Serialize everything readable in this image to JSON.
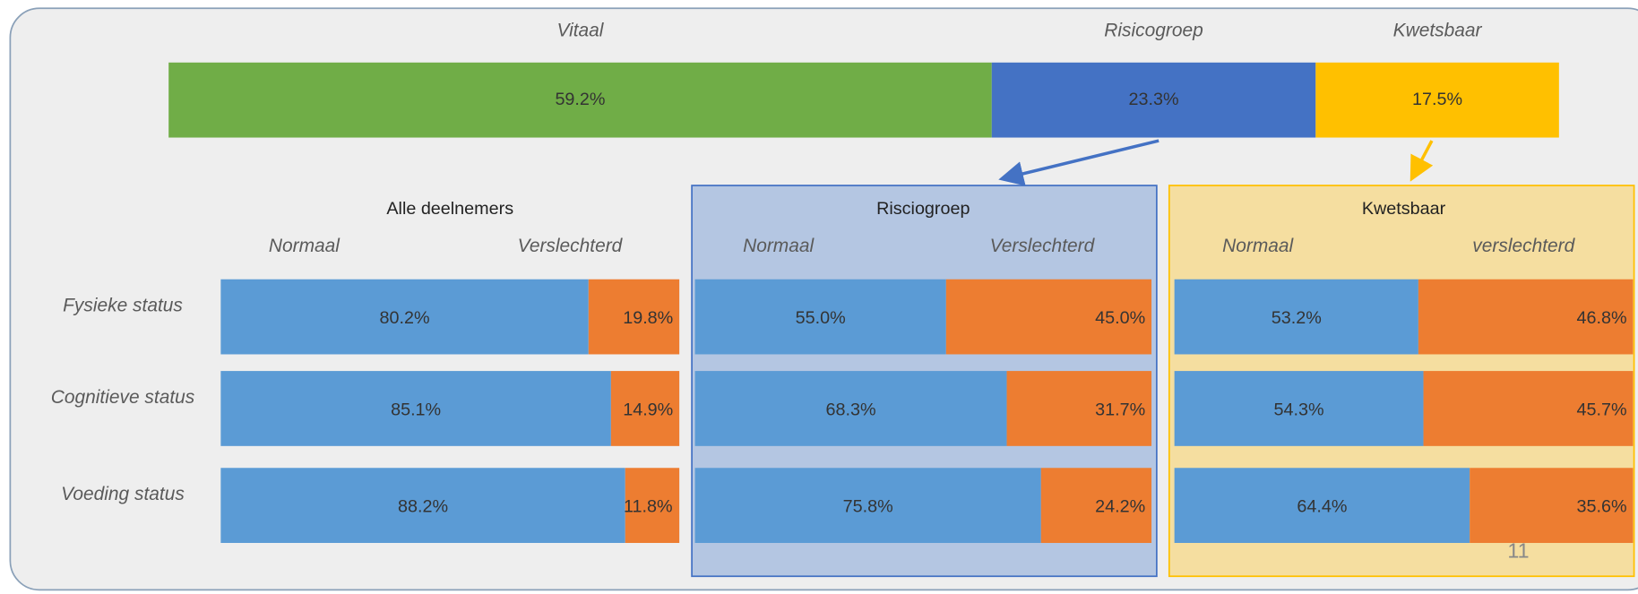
{
  "chart_data": [
    {
      "type": "stacked-bar",
      "xlim": [
        0,
        100
      ],
      "series": [
        {
          "name": "Vitaal",
          "color": "#70ad47",
          "values": [
            59.2
          ],
          "value_labels": [
            "59.2%"
          ]
        },
        {
          "name": "Risicogroep",
          "color": "#4472c4",
          "values": [
            23.3
          ],
          "value_labels": [
            "23.3%"
          ]
        },
        {
          "name": "Kwetsbaar",
          "color": "#ffc000",
          "values": [
            17.5
          ],
          "value_labels": [
            "17.5%"
          ]
        }
      ]
    },
    {
      "type": "stacked-bar",
      "title": "Alle deelnemers",
      "xlim": [
        0,
        100
      ],
      "categories": [
        "Fysieke status",
        "Cognitieve status",
        "Voeding status"
      ],
      "series": [
        {
          "name": "Normaal",
          "color": "#5b9bd5",
          "values": [
            80.2,
            85.1,
            88.2
          ],
          "value_labels": [
            "80.2%",
            "85.1%",
            "88.2%"
          ]
        },
        {
          "name": "Verslechterd",
          "color": "#ed7d31",
          "values": [
            19.8,
            14.9,
            11.8
          ],
          "value_labels": [
            "19.8%",
            "14.9%",
            "11.8%"
          ]
        }
      ]
    },
    {
      "type": "stacked-bar",
      "title": "Risciogroep",
      "xlim": [
        0,
        100
      ],
      "series": [
        {
          "name": "Normaal",
          "color": "#5b9bd5",
          "values": [
            55.0,
            68.3,
            75.8
          ],
          "value_labels": [
            "55.0%",
            "68.3%",
            "75.8%"
          ]
        },
        {
          "name": "Verslechterd",
          "color": "#ed7d31",
          "values": [
            45.0,
            31.7,
            24.2
          ],
          "value_labels": [
            "45.0%",
            "31.7%",
            "24.2%"
          ]
        }
      ]
    },
    {
      "type": "stacked-bar",
      "title": "Kwetsbaar",
      "xlim": [
        0,
        100
      ],
      "series": [
        {
          "name": "Normaal",
          "color": "#5b9bd5",
          "values": [
            53.2,
            54.3,
            64.4
          ],
          "value_labels": [
            "53.2%",
            "54.3%",
            "64.4%"
          ]
        },
        {
          "name": "verslechterd",
          "color": "#ed7d31",
          "values": [
            46.8,
            45.7,
            35.6
          ],
          "value_labels": [
            "46.8%",
            "45.7%",
            "35.6%"
          ]
        }
      ]
    }
  ],
  "page_number": 11
}
